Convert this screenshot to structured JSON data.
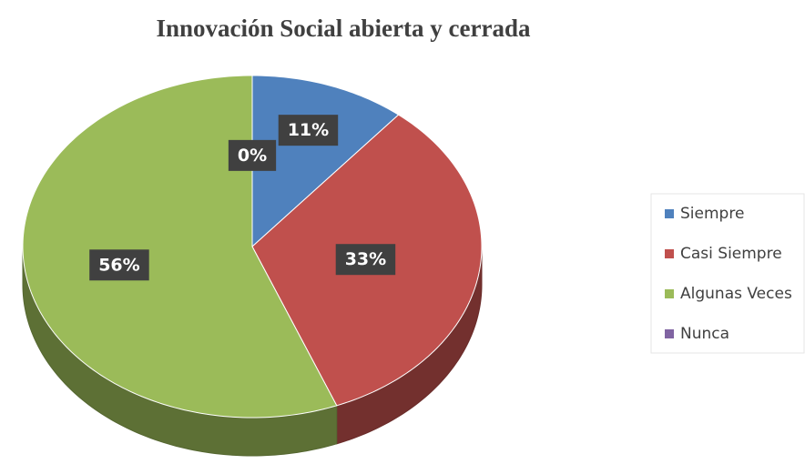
{
  "chart_data": {
    "type": "pie",
    "title": "Innovación Social  abierta y cerrada",
    "categories": [
      "Siempre",
      "Casi Siempre",
      "Algunas Veces",
      "Nunca"
    ],
    "values": [
      11,
      33,
      56,
      0
    ],
    "value_labels": [
      "11%",
      "33%",
      "56%",
      "0%"
    ],
    "colors": [
      "#4f81bd",
      "#c0504d",
      "#9bbb59",
      "#8064a2"
    ],
    "legend": "right"
  }
}
